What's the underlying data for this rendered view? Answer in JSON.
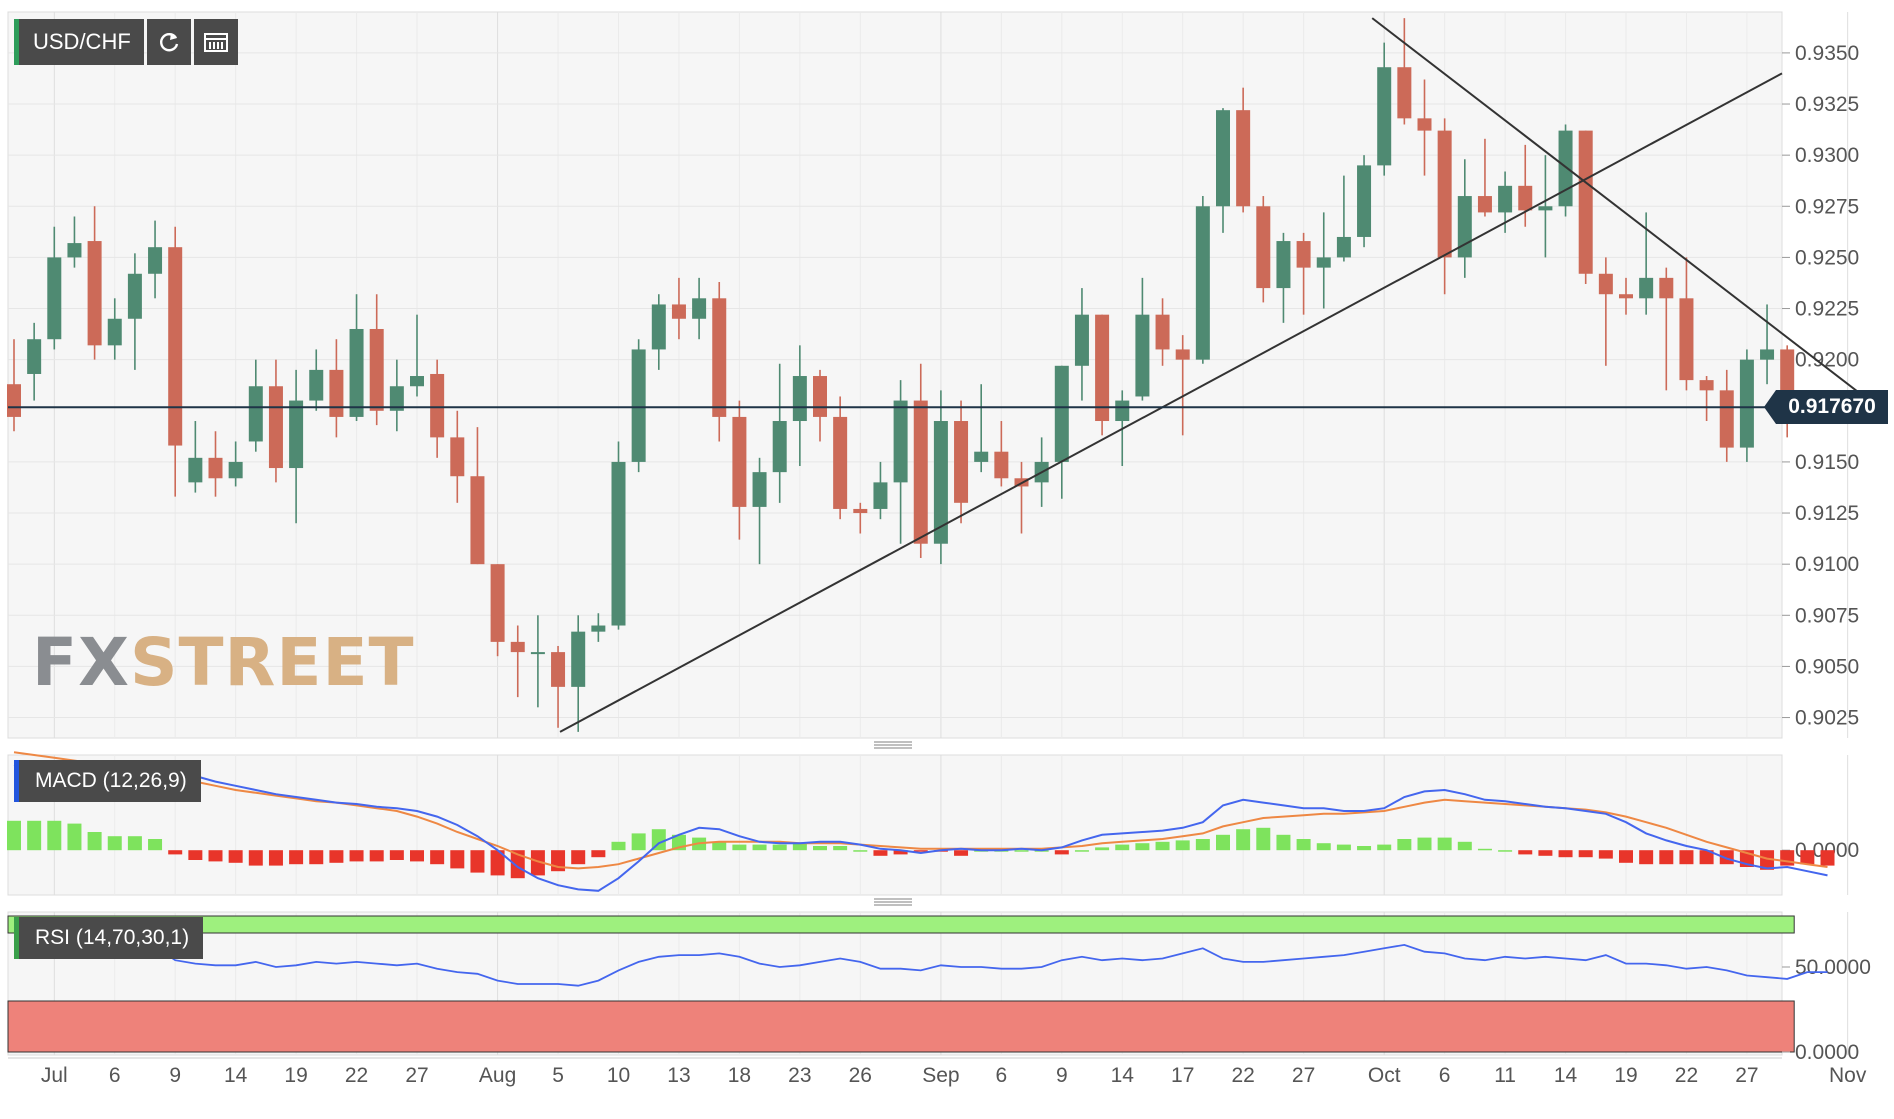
{
  "toolbar": {
    "symbol": "USD/CHF",
    "refresh_icon": "refresh-icon",
    "calendar_icon": "calendar-icon"
  },
  "logo": {
    "fx": "FX",
    "street": "STREET"
  },
  "colors": {
    "up": "#4f8a72",
    "down": "#cc6a58",
    "macd_line": "#4466ee",
    "signal_line": "#ee8844",
    "hist_pos": "#7ee35d",
    "hist_neg": "#e8352a",
    "rsi_line": "#4466ee",
    "overbought_band": "#9ef07e",
    "oversold_band": "#ee827a",
    "last_price_bg": "#1f3447"
  },
  "chart_data": [
    {
      "type": "candlestick",
      "symbol": "USD/CHF",
      "last_price": "0.917670",
      "price_label_text": "0.917670",
      "yticks": [
        "0.9350",
        "0.9325",
        "0.9300",
        "0.9275",
        "0.9250",
        "0.9225",
        "0.9200",
        "0.9150",
        "0.9125",
        "0.9100",
        "0.9075",
        "0.9050",
        "0.9025"
      ],
      "ylim": [
        0.9015,
        0.937
      ],
      "xticks": [
        "Jul",
        "6",
        "9",
        "14",
        "19",
        "22",
        "27",
        "Aug",
        "5",
        "10",
        "13",
        "18",
        "23",
        "26",
        "Sep",
        "6",
        "9",
        "14",
        "17",
        "22",
        "27",
        "Oct",
        "6",
        "11",
        "14",
        "19",
        "22",
        "27",
        "Nov"
      ],
      "grid": true,
      "candles": [
        {
          "t": "Jun 29",
          "o": 0.9188,
          "h": 0.921,
          "l": 0.9165,
          "c": 0.9172
        },
        {
          "t": "Jun 30",
          "o": 0.9193,
          "h": 0.9218,
          "l": 0.918,
          "c": 0.921
        },
        {
          "t": "Jul 1",
          "o": 0.921,
          "h": 0.9265,
          "l": 0.9205,
          "c": 0.925
        },
        {
          "t": "Jul 2",
          "o": 0.925,
          "h": 0.927,
          "l": 0.9245,
          "c": 0.9257
        },
        {
          "t": "Jul 5",
          "o": 0.9258,
          "h": 0.9275,
          "l": 0.92,
          "c": 0.9207
        },
        {
          "t": "Jul 6",
          "o": 0.9207,
          "h": 0.923,
          "l": 0.92,
          "c": 0.922
        },
        {
          "t": "Jul 7",
          "o": 0.922,
          "h": 0.9252,
          "l": 0.9195,
          "c": 0.9242
        },
        {
          "t": "Jul 8",
          "o": 0.9242,
          "h": 0.9268,
          "l": 0.923,
          "c": 0.9255
        },
        {
          "t": "Jul 9",
          "o": 0.9255,
          "h": 0.9265,
          "l": 0.9133,
          "c": 0.9158
        },
        {
          "t": "Jul 12",
          "o": 0.914,
          "h": 0.917,
          "l": 0.9135,
          "c": 0.9152
        },
        {
          "t": "Jul 13",
          "o": 0.9152,
          "h": 0.9165,
          "l": 0.9133,
          "c": 0.9142
        },
        {
          "t": "Jul 14",
          "o": 0.9142,
          "h": 0.916,
          "l": 0.9138,
          "c": 0.915
        },
        {
          "t": "Jul 15",
          "o": 0.916,
          "h": 0.92,
          "l": 0.9155,
          "c": 0.9187
        },
        {
          "t": "Jul 16",
          "o": 0.9187,
          "h": 0.92,
          "l": 0.914,
          "c": 0.9147
        },
        {
          "t": "Jul 19",
          "o": 0.9147,
          "h": 0.9195,
          "l": 0.912,
          "c": 0.918
        },
        {
          "t": "Jul 20",
          "o": 0.918,
          "h": 0.9205,
          "l": 0.9175,
          "c": 0.9195
        },
        {
          "t": "Jul 21",
          "o": 0.9195,
          "h": 0.921,
          "l": 0.9162,
          "c": 0.9172
        },
        {
          "t": "Jul 22",
          "o": 0.9172,
          "h": 0.9232,
          "l": 0.917,
          "c": 0.9215
        },
        {
          "t": "Jul 23",
          "o": 0.9215,
          "h": 0.9232,
          "l": 0.9168,
          "c": 0.9175
        },
        {
          "t": "Jul 26",
          "o": 0.9175,
          "h": 0.92,
          "l": 0.9165,
          "c": 0.9187
        },
        {
          "t": "Jul 27",
          "o": 0.9187,
          "h": 0.9222,
          "l": 0.9182,
          "c": 0.9192
        },
        {
          "t": "Jul 28",
          "o": 0.9193,
          "h": 0.92,
          "l": 0.9152,
          "c": 0.9162
        },
        {
          "t": "Jul 29",
          "o": 0.9162,
          "h": 0.9175,
          "l": 0.913,
          "c": 0.9143
        },
        {
          "t": "Jul 30",
          "o": 0.9143,
          "h": 0.9167,
          "l": 0.91,
          "c": 0.91
        },
        {
          "t": "Aug 2",
          "o": 0.91,
          "h": 0.91,
          "l": 0.9055,
          "c": 0.9062
        },
        {
          "t": "Aug 3",
          "o": 0.9062,
          "h": 0.907,
          "l": 0.9035,
          "c": 0.9057
        },
        {
          "t": "Aug 4",
          "o": 0.9057,
          "h": 0.9075,
          "l": 0.903,
          "c": 0.9057
        },
        {
          "t": "Aug 5",
          "o": 0.9057,
          "h": 0.906,
          "l": 0.902,
          "c": 0.904
        },
        {
          "t": "Aug 6",
          "o": 0.904,
          "h": 0.9075,
          "l": 0.9018,
          "c": 0.9067
        },
        {
          "t": "Aug 9",
          "o": 0.9067,
          "h": 0.9076,
          "l": 0.9062,
          "c": 0.907
        },
        {
          "t": "Aug 10",
          "o": 0.907,
          "h": 0.916,
          "l": 0.9068,
          "c": 0.915
        },
        {
          "t": "Aug 11",
          "o": 0.915,
          "h": 0.921,
          "l": 0.9145,
          "c": 0.9205
        },
        {
          "t": "Aug 12",
          "o": 0.9205,
          "h": 0.9232,
          "l": 0.9195,
          "c": 0.9227
        },
        {
          "t": "Aug 13",
          "o": 0.9227,
          "h": 0.924,
          "l": 0.921,
          "c": 0.922
        },
        {
          "t": "Aug 16",
          "o": 0.922,
          "h": 0.924,
          "l": 0.921,
          "c": 0.923
        },
        {
          "t": "Aug 17",
          "o": 0.923,
          "h": 0.9238,
          "l": 0.916,
          "c": 0.9172
        },
        {
          "t": "Aug 18",
          "o": 0.9172,
          "h": 0.918,
          "l": 0.9112,
          "c": 0.9128
        },
        {
          "t": "Aug 19",
          "o": 0.9128,
          "h": 0.9152,
          "l": 0.91,
          "c": 0.9145
        },
        {
          "t": "Aug 20",
          "o": 0.9145,
          "h": 0.9198,
          "l": 0.913,
          "c": 0.917
        },
        {
          "t": "Aug 23",
          "o": 0.917,
          "h": 0.9207,
          "l": 0.9148,
          "c": 0.9192
        },
        {
          "t": "Aug 24",
          "o": 0.9192,
          "h": 0.9195,
          "l": 0.916,
          "c": 0.9172
        },
        {
          "t": "Aug 25",
          "o": 0.9172,
          "h": 0.9182,
          "l": 0.9122,
          "c": 0.9127
        },
        {
          "t": "Aug 26",
          "o": 0.9127,
          "h": 0.913,
          "l": 0.9115,
          "c": 0.9125
        },
        {
          "t": "Aug 27",
          "o": 0.9127,
          "h": 0.915,
          "l": 0.9122,
          "c": 0.914
        },
        {
          "t": "Aug 30",
          "o": 0.914,
          "h": 0.919,
          "l": 0.911,
          "c": 0.918
        },
        {
          "t": "Aug 31",
          "o": 0.918,
          "h": 0.9198,
          "l": 0.9103,
          "c": 0.911
        },
        {
          "t": "Sep 1",
          "o": 0.911,
          "h": 0.9185,
          "l": 0.91,
          "c": 0.917
        },
        {
          "t": "Sep 2",
          "o": 0.917,
          "h": 0.918,
          "l": 0.912,
          "c": 0.913
        },
        {
          "t": "Sep 3",
          "o": 0.915,
          "h": 0.9188,
          "l": 0.9145,
          "c": 0.9155
        },
        {
          "t": "Sep 6",
          "o": 0.9155,
          "h": 0.917,
          "l": 0.9138,
          "c": 0.9142
        },
        {
          "t": "Sep 7",
          "o": 0.9142,
          "h": 0.915,
          "l": 0.9115,
          "c": 0.9138
        },
        {
          "t": "Sep 8",
          "o": 0.914,
          "h": 0.9162,
          "l": 0.9128,
          "c": 0.915
        },
        {
          "t": "Sep 9",
          "o": 0.915,
          "h": 0.9197,
          "l": 0.9132,
          "c": 0.9197
        },
        {
          "t": "Sep 10",
          "o": 0.9197,
          "h": 0.9235,
          "l": 0.918,
          "c": 0.9222
        },
        {
          "t": "Sep 13",
          "o": 0.9222,
          "h": 0.9222,
          "l": 0.9163,
          "c": 0.917
        },
        {
          "t": "Sep 14",
          "o": 0.917,
          "h": 0.9185,
          "l": 0.9148,
          "c": 0.918
        },
        {
          "t": "Sep 15",
          "o": 0.9182,
          "h": 0.924,
          "l": 0.918,
          "c": 0.9222
        },
        {
          "t": "Sep 16",
          "o": 0.9222,
          "h": 0.923,
          "l": 0.9197,
          "c": 0.9205
        },
        {
          "t": "Sep 17",
          "o": 0.9205,
          "h": 0.9212,
          "l": 0.9163,
          "c": 0.92
        },
        {
          "t": "Sep 20",
          "o": 0.92,
          "h": 0.928,
          "l": 0.9198,
          "c": 0.9275
        },
        {
          "t": "Sep 21",
          "o": 0.9275,
          "h": 0.9323,
          "l": 0.9262,
          "c": 0.9322
        },
        {
          "t": "Sep 22",
          "o": 0.9322,
          "h": 0.9333,
          "l": 0.9272,
          "c": 0.9275
        },
        {
          "t": "Sep 23",
          "o": 0.9275,
          "h": 0.928,
          "l": 0.9228,
          "c": 0.9235
        },
        {
          "t": "Sep 24",
          "o": 0.9235,
          "h": 0.9262,
          "l": 0.9218,
          "c": 0.9258
        },
        {
          "t": "Sep 27",
          "o": 0.9258,
          "h": 0.9262,
          "l": 0.9222,
          "c": 0.9245
        },
        {
          "t": "Sep 28",
          "o": 0.9245,
          "h": 0.9272,
          "l": 0.9225,
          "c": 0.925
        },
        {
          "t": "Sep 29",
          "o": 0.925,
          "h": 0.929,
          "l": 0.9248,
          "c": 0.926
        },
        {
          "t": "Sep 30",
          "o": 0.926,
          "h": 0.93,
          "l": 0.9255,
          "c": 0.9295
        },
        {
          "t": "Oct 1",
          "o": 0.9295,
          "h": 0.9355,
          "l": 0.929,
          "c": 0.9343
        },
        {
          "t": "Oct 4",
          "o": 0.9343,
          "h": 0.9367,
          "l": 0.9315,
          "c": 0.9318
        },
        {
          "t": "Oct 5",
          "o": 0.9318,
          "h": 0.9337,
          "l": 0.929,
          "c": 0.9312
        },
        {
          "t": "Oct 6",
          "o": 0.9312,
          "h": 0.9318,
          "l": 0.9232,
          "c": 0.925
        },
        {
          "t": "Oct 7",
          "o": 0.925,
          "h": 0.9298,
          "l": 0.924,
          "c": 0.928
        },
        {
          "t": "Oct 8",
          "o": 0.928,
          "h": 0.9308,
          "l": 0.927,
          "c": 0.9272
        },
        {
          "t": "Oct 11",
          "o": 0.9272,
          "h": 0.9292,
          "l": 0.9262,
          "c": 0.9285
        },
        {
          "t": "Oct 12",
          "o": 0.9285,
          "h": 0.9305,
          "l": 0.9265,
          "c": 0.9273
        },
        {
          "t": "Oct 13",
          "o": 0.9273,
          "h": 0.93,
          "l": 0.925,
          "c": 0.9275
        },
        {
          "t": "Oct 14",
          "o": 0.9275,
          "h": 0.9315,
          "l": 0.927,
          "c": 0.9312
        },
        {
          "t": "Oct 15",
          "o": 0.9312,
          "h": 0.9312,
          "l": 0.9237,
          "c": 0.9242
        },
        {
          "t": "Oct 18",
          "o": 0.9242,
          "h": 0.925,
          "l": 0.9197,
          "c": 0.9232
        },
        {
          "t": "Oct 19",
          "o": 0.9232,
          "h": 0.924,
          "l": 0.9222,
          "c": 0.923
        },
        {
          "t": "Oct 20",
          "o": 0.923,
          "h": 0.9272,
          "l": 0.9222,
          "c": 0.924
        },
        {
          "t": "Oct 21",
          "o": 0.924,
          "h": 0.9245,
          "l": 0.9185,
          "c": 0.923
        },
        {
          "t": "Oct 22",
          "o": 0.923,
          "h": 0.925,
          "l": 0.9185,
          "c": 0.919
        },
        {
          "t": "Oct 25",
          "o": 0.919,
          "h": 0.9192,
          "l": 0.917,
          "c": 0.9185
        },
        {
          "t": "Oct 26",
          "o": 0.9185,
          "h": 0.9195,
          "l": 0.915,
          "c": 0.9157
        },
        {
          "t": "Oct 27",
          "o": 0.9157,
          "h": 0.9205,
          "l": 0.915,
          "c": 0.92
        },
        {
          "t": "Oct 28",
          "o": 0.92,
          "h": 0.9227,
          "l": 0.9188,
          "c": 0.9205
        },
        {
          "t": "Oct 29",
          "o": 0.9205,
          "h": 0.9207,
          "l": 0.9162,
          "c": 0.9177
        }
      ],
      "trendlines": [
        {
          "from": {
            "t": "Aug 5",
            "price": 0.9018
          },
          "to": {
            "t": "right edge",
            "price": 0.934
          }
        },
        {
          "from": {
            "t": "Oct 1",
            "price": 0.9367
          },
          "to": {
            "t": "Nov 2",
            "price": 0.9176
          }
        }
      ]
    },
    {
      "type": "macd",
      "title": "MACD (12,26,9)",
      "yticks": [
        "0.0000"
      ],
      "macd_line": [
        0.006,
        0.0063,
        0.0062,
        0.0061,
        0.0061,
        0.0061,
        0.0061,
        0.0062,
        0.0058,
        0.0053,
        0.0049,
        0.0046,
        0.0043,
        0.004,
        0.0038,
        0.0036,
        0.0034,
        0.0033,
        0.0031,
        0.003,
        0.0028,
        0.0024,
        0.0018,
        0.001,
        0.0,
        -0.0012,
        -0.002,
        -0.0025,
        -0.0028,
        -0.0029,
        -0.002,
        -0.0008,
        0.0005,
        0.0011,
        0.0016,
        0.0015,
        0.001,
        0.0006,
        0.0005,
        0.0005,
        0.0006,
        0.0006,
        0.0004,
        0.0001,
        0.0,
        -0.0002,
        0.0,
        0.0001,
        0.0,
        0.0,
        0.0001,
        0.0,
        0.0002,
        0.0007,
        0.0011,
        0.0012,
        0.0013,
        0.0014,
        0.0016,
        0.002,
        0.0032,
        0.0036,
        0.0034,
        0.0032,
        0.003,
        0.003,
        0.0028,
        0.0028,
        0.003,
        0.0038,
        0.0042,
        0.0043,
        0.004,
        0.0036,
        0.0035,
        0.0033,
        0.0031,
        0.003,
        0.0028,
        0.0026,
        0.002,
        0.0012,
        0.0007,
        0.0003,
        0.0,
        -0.0006,
        -0.001,
        -0.0013,
        -0.0012,
        -0.0015,
        -0.0018
      ],
      "signal_line": [
        0.007,
        0.0068,
        0.0066,
        0.0064,
        0.0062,
        0.006,
        0.0058,
        0.0056,
        0.0053,
        0.0049,
        0.0046,
        0.0043,
        0.0041,
        0.0039,
        0.0037,
        0.0035,
        0.0034,
        0.0032,
        0.003,
        0.0028,
        0.0024,
        0.0019,
        0.0013,
        0.0008,
        0.0003,
        -0.0003,
        -0.0008,
        -0.0012,
        -0.0013,
        -0.0012,
        -0.001,
        -0.0006,
        -0.0002,
        0.0002,
        0.0005,
        0.0006,
        0.0006,
        0.0006,
        0.0006,
        0.0005,
        0.0005,
        0.0005,
        0.0004,
        0.0003,
        0.0002,
        0.0001,
        0.0001,
        0.0001,
        0.0001,
        0.0001,
        0.0001,
        0.0001,
        0.0002,
        0.0003,
        0.0005,
        0.0006,
        0.0007,
        0.0008,
        0.001,
        0.0012,
        0.0017,
        0.002,
        0.0023,
        0.0024,
        0.0025,
        0.0026,
        0.0026,
        0.0027,
        0.0028,
        0.0031,
        0.0034,
        0.0036,
        0.0035,
        0.0034,
        0.0033,
        0.0032,
        0.0031,
        0.003,
        0.0029,
        0.0027,
        0.0024,
        0.002,
        0.0016,
        0.0011,
        0.0006,
        0.0002,
        -0.0002,
        -0.0006,
        -0.0008,
        -0.001,
        -0.0012
      ],
      "histogram": [
        0.0021,
        0.0021,
        0.0021,
        0.0019,
        0.0013,
        0.001,
        0.001,
        0.0008,
        -0.0003,
        -0.0007,
        -0.0008,
        -0.0009,
        -0.0011,
        -0.0011,
        -0.001,
        -0.001,
        -0.0009,
        -0.0008,
        -0.0008,
        -0.0007,
        -0.0008,
        -0.001,
        -0.0013,
        -0.0016,
        -0.0018,
        -0.002,
        -0.0018,
        -0.0015,
        -0.001,
        -0.0005,
        0.0006,
        0.0012,
        0.0015,
        0.0011,
        0.0009,
        0.0006,
        0.0004,
        0.0004,
        0.0004,
        0.0005,
        0.0003,
        0.0003,
        0.0,
        -0.0004,
        -0.0003,
        -0.0001,
        -0.0001,
        -0.0004,
        0.0,
        0.0,
        0.0,
        0.0,
        -0.0003,
        0.0,
        0.0002,
        0.0004,
        0.0005,
        0.0006,
        0.0007,
        0.0008,
        0.0011,
        0.0015,
        0.0016,
        0.0011,
        0.0008,
        0.0005,
        0.0004,
        0.0003,
        0.0004,
        0.0008,
        0.0009,
        0.0009,
        0.0006,
        0.0001,
        0.0,
        -0.0003,
        -0.0004,
        -0.0005,
        -0.0005,
        -0.0006,
        -0.0009,
        -0.001,
        -0.001,
        -0.001,
        -0.001,
        -0.001,
        -0.0012,
        -0.0014,
        -0.0011,
        -0.001,
        -0.0011
      ]
    },
    {
      "type": "line",
      "title": "RSI (14,70,30,1)",
      "yticks": [
        "50.0000",
        "0.0000"
      ],
      "overbought": 70,
      "oversold": 30,
      "values": [
        67,
        67,
        65,
        64,
        64,
        64,
        63,
        62,
        54,
        52,
        51,
        51,
        53,
        50,
        51,
        53,
        52,
        53,
        52,
        51,
        52,
        49,
        47,
        46,
        42,
        40,
        40,
        40,
        39,
        42,
        48,
        53,
        56,
        57,
        57,
        58,
        56,
        52,
        50,
        51,
        53,
        55,
        53,
        49,
        49,
        48,
        51,
        50,
        50,
        49,
        49,
        50,
        54,
        56,
        54,
        55,
        54,
        55,
        58,
        61,
        55,
        53,
        53,
        54,
        55,
        56,
        57,
        59,
        61,
        63,
        59,
        58,
        55,
        54,
        56,
        55,
        56,
        55,
        54,
        57,
        52,
        52,
        51,
        49,
        50,
        48,
        45,
        44,
        43,
        47,
        47
      ]
    }
  ]
}
